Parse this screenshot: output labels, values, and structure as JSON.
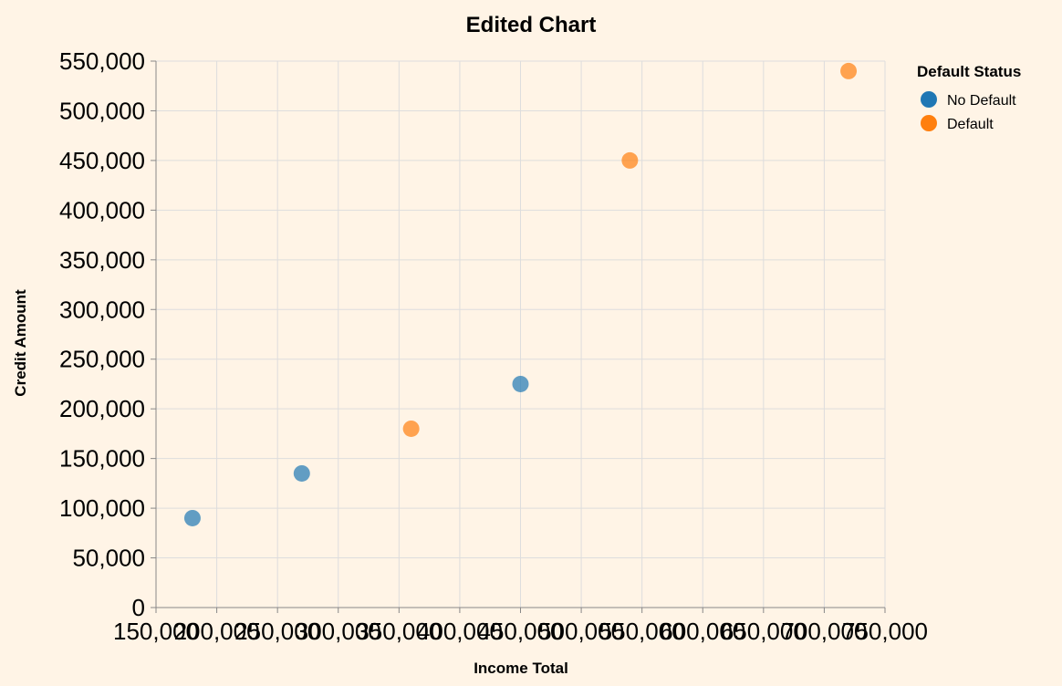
{
  "colors": {
    "background": "#fff4e6",
    "no_default": "#1f77b4",
    "default": "#ff7f0e"
  },
  "chart_data": {
    "type": "scatter",
    "title": "Edited Chart",
    "xlabel": "Income Total",
    "ylabel": "Credit Amount",
    "xlim": [
      150000,
      750000
    ],
    "ylim": [
      0,
      550000
    ],
    "x_ticks": [
      "150,000",
      "200,000",
      "250,000",
      "300,000",
      "350,000",
      "400,000",
      "450,000",
      "500,000",
      "550,000",
      "600,000",
      "650,000",
      "700,000",
      "750,000"
    ],
    "y_ticks": [
      "0",
      "50,000",
      "100,000",
      "150,000",
      "200,000",
      "250,000",
      "300,000",
      "350,000",
      "400,000",
      "450,000",
      "500,000",
      "550,000"
    ],
    "grid": true,
    "legend": {
      "title": "Default Status",
      "placement": "top-right",
      "entries": [
        "No Default",
        "Default"
      ]
    },
    "series": [
      {
        "name": "No Default",
        "color": "#1f77b4",
        "points": [
          {
            "x": 180000,
            "y": 90000
          },
          {
            "x": 270000,
            "y": 135000
          },
          {
            "x": 450000,
            "y": 225000
          }
        ]
      },
      {
        "name": "Default",
        "color": "#ff7f0e",
        "points": [
          {
            "x": 360000,
            "y": 180000
          },
          {
            "x": 540000,
            "y": 450000
          },
          {
            "x": 720000,
            "y": 540000
          }
        ]
      }
    ]
  }
}
